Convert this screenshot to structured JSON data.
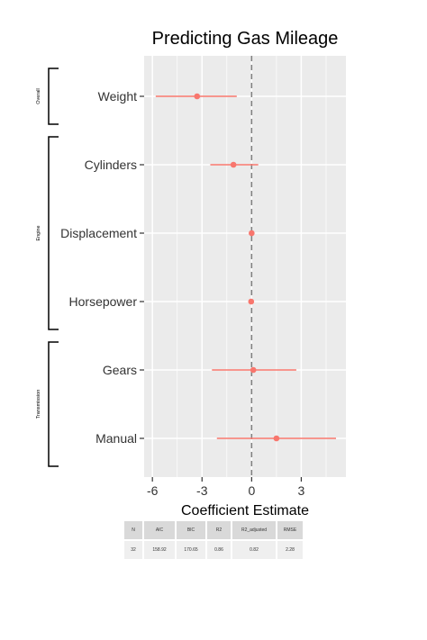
{
  "chart_data": {
    "type": "forest",
    "title": "Predicting Gas Mileage",
    "xlabel": "Coefficient Estimate",
    "ylabel": "",
    "xlim": [
      -6.5,
      5.7
    ],
    "xticks": [
      "-6",
      "-3",
      "0",
      "3"
    ],
    "xtick_values": [
      -6,
      -3,
      0,
      3
    ],
    "reference_line": 0,
    "point_color": "#F8766D",
    "panel_color": "#EBEBEB",
    "terms": [
      {
        "label": "Weight",
        "estimate": -3.3,
        "low": -5.8,
        "high": -0.9
      },
      {
        "label": "Cylinders",
        "estimate": -1.1,
        "low": -2.5,
        "high": 0.4
      },
      {
        "label": "Displacement",
        "estimate": 0.0,
        "low": -0.03,
        "high": 0.03
      },
      {
        "label": "Horsepower",
        "estimate": -0.03,
        "low": -0.07,
        "high": 0.01
      },
      {
        "label": "Gears",
        "estimate": 0.1,
        "low": -2.4,
        "high": 2.7
      },
      {
        "label": "Manual",
        "estimate": 1.5,
        "low": -2.1,
        "high": 5.1
      }
    ],
    "groups": [
      {
        "name": "Overall",
        "first": 0,
        "last": 0
      },
      {
        "name": "Engine",
        "first": 1,
        "last": 3
      },
      {
        "name": "Transmission",
        "first": 4,
        "last": 5
      }
    ]
  },
  "stats_table": {
    "headers": [
      "N",
      "AIC",
      "BIC",
      "R2",
      "R2_adjusted",
      "RMSE"
    ],
    "row": [
      "32",
      "158.92",
      "170.65",
      "0.86",
      "0.82",
      "2.28"
    ]
  }
}
